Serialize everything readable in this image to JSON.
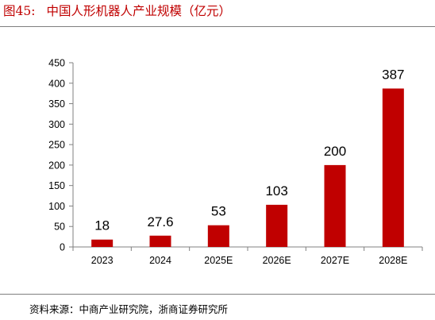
{
  "figure": {
    "number": "图45:",
    "title": "中国人形机器人产业规模（亿元）"
  },
  "source": "资料来源：中商产业研究院，浙商证券研究所",
  "colors": {
    "bar": "#c00000",
    "title": "#c00000",
    "axis": "#808080"
  },
  "chart_data": {
    "type": "bar",
    "categories": [
      "2023",
      "2024",
      "2025E",
      "2026E",
      "2027E",
      "2028E"
    ],
    "values": [
      18,
      27.6,
      53,
      103,
      200,
      387
    ],
    "data_labels": [
      "18",
      "27.6",
      "53",
      "103",
      "200",
      "387"
    ],
    "yticks": [
      "0",
      "50",
      "100",
      "150",
      "200",
      "250",
      "300",
      "350",
      "400",
      "450"
    ],
    "ylim": [
      0,
      450
    ],
    "title": "",
    "xlabel": "",
    "ylabel": "",
    "grid": false,
    "legend": "none"
  }
}
